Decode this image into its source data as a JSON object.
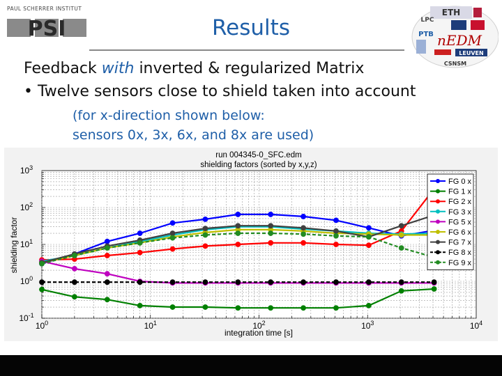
{
  "header": {
    "institute": "PAUL SCHERRER INSTITUT",
    "institute_logo": "PSI",
    "title": "Results",
    "partner_logos": [
      "ETH",
      "LPC",
      "PTB",
      "nEDM",
      "LEUVEN",
      "CSNSM"
    ]
  },
  "body": {
    "bullet1_pre": "Feedback ",
    "bullet1_em": "with",
    "bullet1_post": " inverted & regularized Matrix",
    "bullet2": "• Twelve sensors close to shield taken into account",
    "sub_line1": "(for x-direction shown below:",
    "sub_line2": "sensors 0x, 3x, 6x, and 8x are used)"
  },
  "chart_data": {
    "type": "line",
    "title": "run 004345-0_SFC.edm",
    "subtitle": "shielding factors (sorted by x,y,z)",
    "xlabel": "integration time [s]",
    "ylabel": "shielding factor",
    "xscale": "log",
    "yscale": "log",
    "xlim": [
      1,
      10000
    ],
    "ylim": [
      0.1,
      1000
    ],
    "xticks": [
      {
        "value": 1,
        "label": "10^0"
      },
      {
        "value": 10,
        "label": "10^1"
      },
      {
        "value": 100,
        "label": "10^2"
      },
      {
        "value": 1000,
        "label": "10^3"
      },
      {
        "value": 10000,
        "label": "10^4"
      }
    ],
    "yticks": [
      {
        "value": 0.1,
        "label": "10^-1"
      },
      {
        "value": 1,
        "label": "10^0"
      },
      {
        "value": 10,
        "label": "10^1"
      },
      {
        "value": 100,
        "label": "10^2"
      },
      {
        "value": 1000,
        "label": "10^3"
      }
    ],
    "grid": true,
    "legend_position": "right",
    "x": [
      1,
      2,
      4,
      8,
      16,
      32,
      64,
      128,
      256,
      512,
      1024,
      2048,
      4096
    ],
    "series": [
      {
        "name": "FG 0 x",
        "color": "#0000ff",
        "dashed": false,
        "values": [
          3.0,
          5.5,
          12.0,
          20.0,
          38.0,
          48.0,
          65.0,
          65.0,
          57.0,
          45.0,
          28.0,
          17.0,
          24.0
        ]
      },
      {
        "name": "FG 1 x",
        "color": "#008000",
        "dashed": false,
        "values": [
          0.6,
          0.38,
          0.32,
          0.22,
          0.2,
          0.2,
          0.19,
          0.19,
          0.19,
          0.19,
          0.22,
          0.55,
          0.62
        ]
      },
      {
        "name": "FG 2 x",
        "color": "#ff0000",
        "dashed": false,
        "values": [
          3.8,
          4.0,
          5.0,
          6.0,
          7.5,
          9.0,
          10.0,
          11.0,
          11.0,
          10.0,
          9.5,
          23.0,
          320.0
        ]
      },
      {
        "name": "FG 3 x",
        "color": "#00bfbf",
        "dashed": false,
        "values": [
          3.5,
          5.0,
          8.0,
          12.0,
          18.0,
          25.0,
          30.0,
          30.0,
          26.0,
          23.0,
          20.0,
          19.0,
          20.0
        ]
      },
      {
        "name": "FG 5 x",
        "color": "#bf00bf",
        "dashed": false,
        "values": [
          3.5,
          2.2,
          1.6,
          1.0,
          0.9,
          0.9,
          0.9,
          0.9,
          0.9,
          0.9,
          0.9,
          0.9,
          0.9
        ]
      },
      {
        "name": "FG 6 x",
        "color": "#bfbf00",
        "dashed": false,
        "values": [
          3.2,
          5.0,
          8.0,
          11.0,
          16.0,
          21.0,
          25.0,
          25.0,
          23.0,
          20.0,
          19.0,
          18.0,
          18.0
        ]
      },
      {
        "name": "FG 7 x",
        "color": "#404040",
        "dashed": false,
        "values": [
          3.2,
          5.5,
          9.0,
          13.0,
          20.0,
          27.0,
          32.0,
          32.0,
          28.0,
          23.0,
          16.0,
          32.0,
          62.0
        ]
      },
      {
        "name": "FG 8 x",
        "color": "#000000",
        "dashed": true,
        "values": [
          0.95,
          0.95,
          0.95,
          0.95,
          0.95,
          0.95,
          0.95,
          0.95,
          0.95,
          0.95,
          0.95,
          0.95,
          0.95
        ]
      },
      {
        "name": "FG 9 x",
        "color": "#228b22",
        "dashed": true,
        "values": [
          3.0,
          5.0,
          8.0,
          11.0,
          15.0,
          18.0,
          20.0,
          20.0,
          19.0,
          17.0,
          16.0,
          8.0,
          4.5
        ]
      }
    ]
  }
}
